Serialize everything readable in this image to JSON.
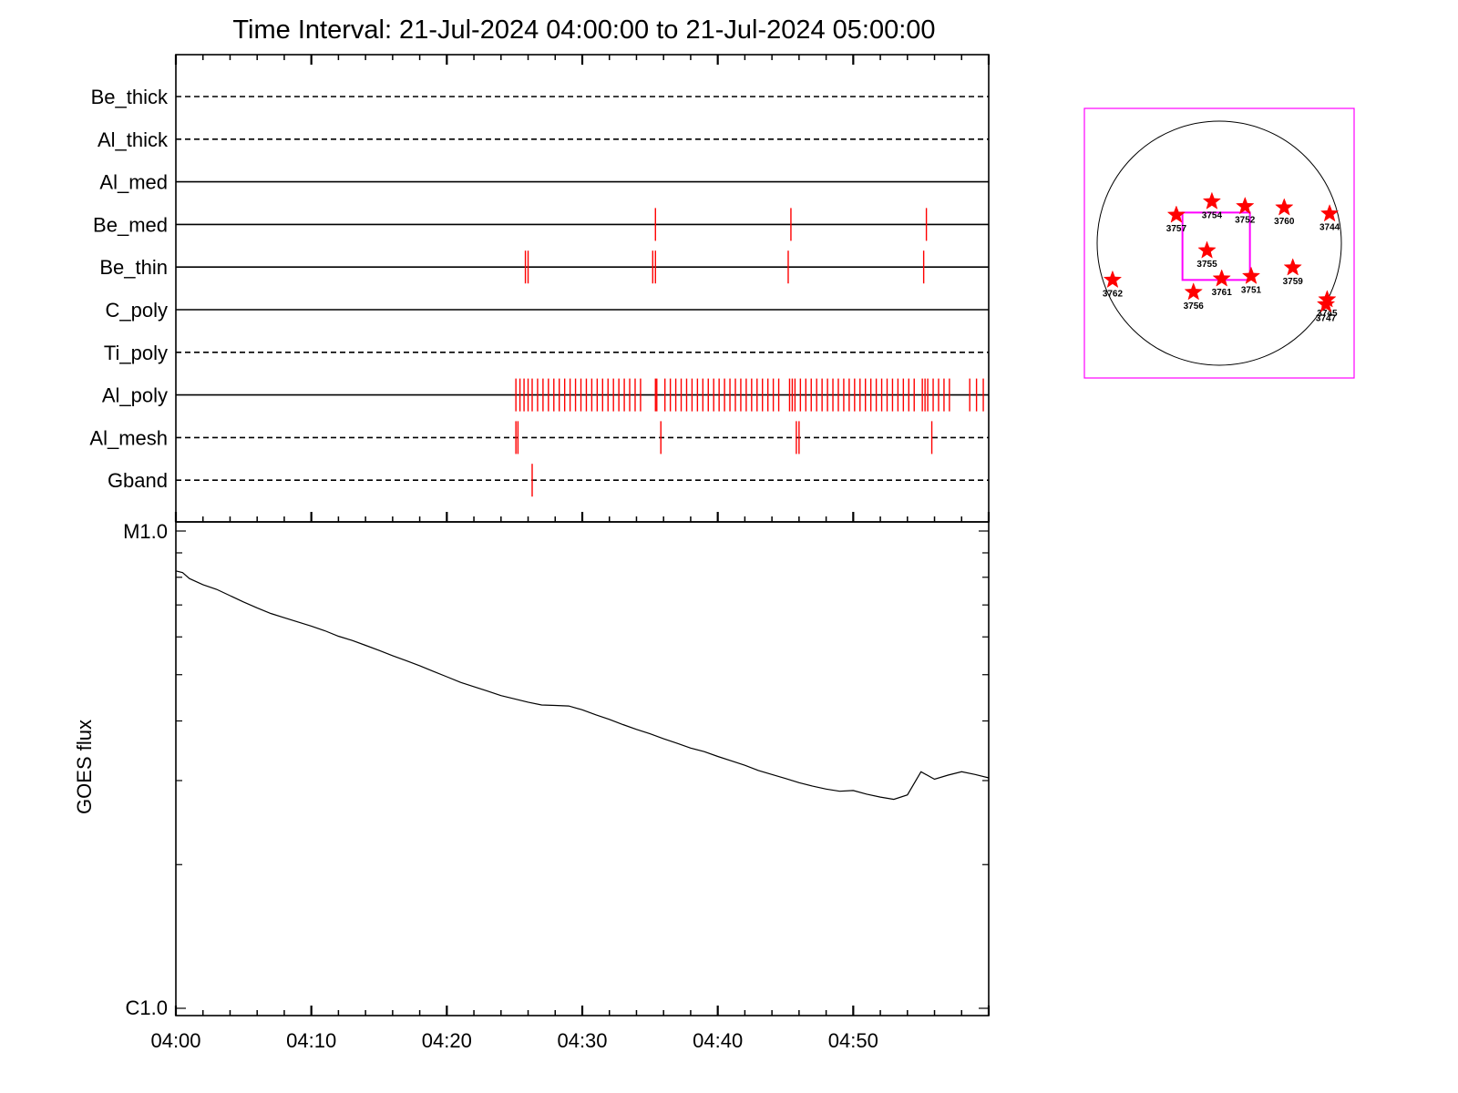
{
  "chart_data": [
    {
      "type": "line",
      "title": "Time Interval: 21-Jul-2024 04:00:00 to 21-Jul-2024 05:00:00",
      "x_ticks": [
        "04:00",
        "04:10",
        "04:20",
        "04:30",
        "04:40",
        "04:50"
      ],
      "x_range_minutes": [
        0,
        60
      ],
      "channels": [
        {
          "name": "Be_thick",
          "line": "dashed",
          "events": []
        },
        {
          "name": "Al_thick",
          "line": "dashed",
          "events": []
        },
        {
          "name": "Al_med",
          "line": "solid",
          "events": []
        },
        {
          "name": "Be_med",
          "line": "solid",
          "events": [
            35.4,
            45.4,
            55.4
          ]
        },
        {
          "name": "Be_thin",
          "line": "solid",
          "events": [
            25.8,
            26.0,
            35.2,
            35.4,
            45.2,
            55.2
          ]
        },
        {
          "name": "C_poly",
          "line": "solid",
          "events": []
        },
        {
          "name": "Ti_poly",
          "line": "dashed",
          "events": []
        },
        {
          "name": "Al_poly",
          "line": "solid",
          "events": [
            25.1,
            25.4,
            25.7,
            26.0,
            26.3,
            26.7,
            27.1,
            27.5,
            27.9,
            28.3,
            28.7,
            29.1,
            29.5,
            29.9,
            30.3,
            30.7,
            31.1,
            31.5,
            31.9,
            32.3,
            32.7,
            33.1,
            33.5,
            33.9,
            34.3,
            35.4,
            35.5,
            36.1,
            36.5,
            36.9,
            37.3,
            37.7,
            38.1,
            38.5,
            38.9,
            39.3,
            39.7,
            40.1,
            40.5,
            40.9,
            41.3,
            41.7,
            42.1,
            42.5,
            42.9,
            43.3,
            43.7,
            44.1,
            44.5,
            45.3,
            45.5,
            45.7,
            46.1,
            46.5,
            46.9,
            47.3,
            47.7,
            48.1,
            48.5,
            48.9,
            49.3,
            49.7,
            50.1,
            50.5,
            50.9,
            51.3,
            51.7,
            52.1,
            52.5,
            52.9,
            53.3,
            53.7,
            54.1,
            54.5,
            55.1,
            55.3,
            55.5,
            55.9,
            56.3,
            56.7,
            57.1,
            58.6,
            59.1,
            59.6
          ]
        },
        {
          "name": "Al_mesh",
          "line": "dashed",
          "events": [
            25.1,
            25.25,
            35.8,
            45.8,
            46.0,
            55.8
          ]
        },
        {
          "name": "Gband",
          "line": "dashed",
          "events": [
            26.3
          ]
        }
      ],
      "flux": {
        "ylabel": "GOES flux",
        "y_tick_top": "M1.0",
        "y_tick_bottom": "C1.0",
        "log_scale": true,
        "ylim_w_m2": [
          1e-06,
          1e-05
        ],
        "x_minutes": [
          0,
          0.5,
          1,
          2,
          3,
          4,
          5,
          6,
          7,
          8,
          9,
          10,
          11,
          12,
          13,
          14,
          15,
          16,
          17,
          18,
          19,
          20,
          21,
          22,
          23,
          24,
          25,
          26,
          27,
          28,
          29,
          30,
          31,
          32,
          33,
          34,
          35,
          36,
          37,
          38,
          39,
          40,
          41,
          42,
          43,
          44,
          45,
          46,
          47,
          48,
          49,
          50,
          51,
          52,
          53,
          54,
          55,
          56,
          57,
          58,
          59,
          60
        ],
        "y_w_m2": [
          8.25e-06,
          8.18e-06,
          7.95e-06,
          7.72e-06,
          7.55e-06,
          7.32e-06,
          7.1e-06,
          6.9e-06,
          6.72e-06,
          6.58e-06,
          6.45e-06,
          6.32e-06,
          6.18e-06,
          6.02e-06,
          5.9e-06,
          5.76e-06,
          5.62e-06,
          5.48e-06,
          5.35e-06,
          5.22e-06,
          5.08e-06,
          4.95e-06,
          4.82e-06,
          4.72e-06,
          4.62e-06,
          4.52e-06,
          4.45e-06,
          4.38e-06,
          4.32e-06,
          4.31e-06,
          4.3e-06,
          4.22e-06,
          4.12e-06,
          4.03e-06,
          3.93e-06,
          3.84e-06,
          3.76e-06,
          3.67e-06,
          3.59e-06,
          3.51e-06,
          3.45e-06,
          3.37e-06,
          3.3e-06,
          3.23e-06,
          3.15e-06,
          3.09e-06,
          3.03e-06,
          2.97e-06,
          2.92e-06,
          2.88e-06,
          2.85e-06,
          2.86e-06,
          2.81e-06,
          2.77e-06,
          2.74e-06,
          2.8e-06,
          3.13e-06,
          3.02e-06,
          3.08e-06,
          3.13e-06,
          3.09e-06,
          3.04e-06
        ]
      }
    },
    {
      "type": "scatter",
      "name": "solar disk",
      "x_range_arcsec": [
        -1100,
        1100
      ],
      "y_range_arcsec": [
        -1100,
        1100
      ],
      "field_of_view_box_arcsec": {
        "x": [
          -300,
          250
        ],
        "y": [
          -300,
          250
        ]
      },
      "regions": [
        {
          "label": "3757",
          "x": -350,
          "y": 230
        },
        {
          "label": "3754",
          "x": -60,
          "y": 340
        },
        {
          "label": "3752",
          "x": 210,
          "y": 300
        },
        {
          "label": "3760",
          "x": 530,
          "y": 290
        },
        {
          "label": "3744",
          "x": 900,
          "y": 240
        },
        {
          "label": "3755",
          "x": -100,
          "y": -60
        },
        {
          "label": "3759",
          "x": 600,
          "y": -200
        },
        {
          "label": "3762",
          "x": -870,
          "y": -300
        },
        {
          "label": "3761",
          "x": 20,
          "y": -290
        },
        {
          "label": "3751",
          "x": 260,
          "y": -270
        },
        {
          "label": "3756",
          "x": -210,
          "y": -400
        },
        {
          "label": "3745",
          "x": 880,
          "y": -460
        },
        {
          "label": "3747",
          "x": 870,
          "y": -500
        }
      ]
    }
  ]
}
